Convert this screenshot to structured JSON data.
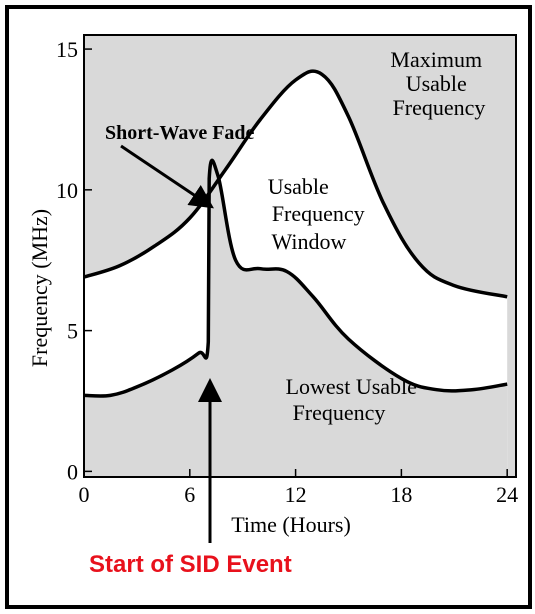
{
  "chart_data": {
    "type": "area",
    "title": "",
    "xlabel": "Time (Hours)",
    "ylabel": "Frequency (MHz)",
    "xlim": [
      0,
      24.5
    ],
    "ylim": [
      -0.2,
      15.5
    ],
    "x_ticks": [
      0,
      6,
      12,
      18,
      24
    ],
    "y_ticks": [
      0,
      5,
      10,
      15
    ],
    "grid": false,
    "colors": {
      "shaded": "#d9d9d9",
      "line": "#000000",
      "sid_label": "#e8111c"
    },
    "series": [
      {
        "name": "Maximum Usable Frequency",
        "points": [
          [
            0,
            6.9
          ],
          [
            2,
            7.3
          ],
          [
            4,
            8.0
          ],
          [
            6,
            9.0
          ],
          [
            8,
            10.7
          ],
          [
            10,
            12.5
          ],
          [
            12,
            13.9
          ],
          [
            13.5,
            14.1
          ],
          [
            15,
            12.6
          ],
          [
            17,
            9.5
          ],
          [
            19,
            7.4
          ],
          [
            21,
            6.6
          ],
          [
            24,
            6.2
          ]
        ]
      },
      {
        "name": "Lowest Usable Frequency",
        "points": [
          [
            0,
            2.7
          ],
          [
            1.5,
            2.7
          ],
          [
            3,
            3.0
          ],
          [
            5,
            3.6
          ],
          [
            6.5,
            4.2
          ],
          [
            7.05,
            4.6
          ],
          [
            7.1,
            10.4
          ],
          [
            7.6,
            10.5
          ],
          [
            8.6,
            7.5
          ],
          [
            10,
            7.2
          ],
          [
            11.5,
            7.1
          ],
          [
            13,
            6.2
          ],
          [
            15,
            4.7
          ],
          [
            18,
            3.3
          ],
          [
            20,
            2.9
          ],
          [
            22,
            2.9
          ],
          [
            24,
            3.1
          ]
        ]
      }
    ],
    "annotations": [
      {
        "id": "mask-label",
        "text_lines": [
          "Maximum",
          "Usable",
          "Frequency"
        ]
      },
      {
        "id": "window-label",
        "text_lines": [
          "Usable",
          "Frequency",
          "Window"
        ]
      },
      {
        "id": "luf-label",
        "text_lines": [
          "Lowest Usable",
          "Frequency"
        ]
      },
      {
        "id": "fade-label",
        "text": "Short-Wave Fade",
        "arrow_to": [
          7.3,
          9.5
        ]
      },
      {
        "id": "sid-label",
        "text": "Start of SID Event",
        "at_x": 7.1
      }
    ]
  }
}
